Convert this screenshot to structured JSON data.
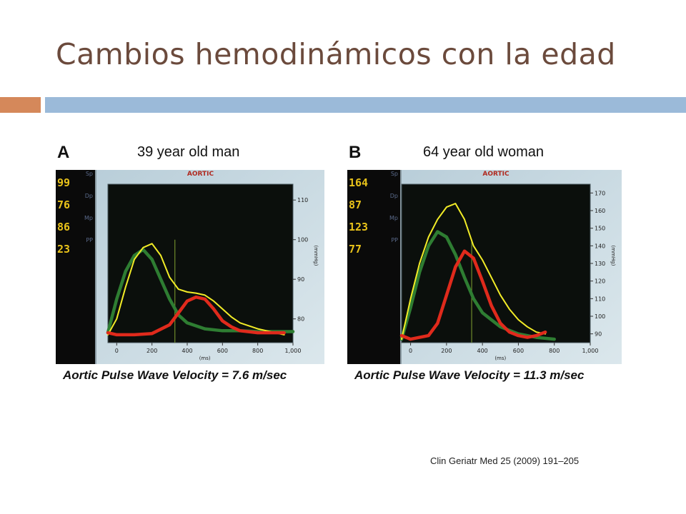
{
  "slide": {
    "title": "Cambios hemodinámicos con la edad",
    "citation": "Clin Geriatr Med 25 (2009) 191–205",
    "accent_colors": {
      "orange": "#d5885a",
      "blue": "#9bbad9",
      "title": "#6b4a3c"
    }
  },
  "chart_data": [
    {
      "type": "line",
      "panel_letter": "A",
      "title": "39 year old man",
      "subtitle": "AORTIC",
      "caption": "Aortic Pulse Wave Velocity = 7.6 m/sec",
      "xlabel": "(ms)",
      "ylabel": "(mmHg)",
      "xlim": [
        -50,
        1000
      ],
      "ylim": [
        74,
        114
      ],
      "x_ticks": [
        0,
        200,
        400,
        600,
        800,
        1000
      ],
      "x_tick_labels": [
        "0",
        "200",
        "400",
        "600",
        "800",
        "1,000"
      ],
      "y_ticks": [
        80,
        90,
        100,
        110
      ],
      "grid": false,
      "readout": [
        {
          "label": "Sp",
          "value": "99"
        },
        {
          "label": "Dp",
          "value": "76"
        },
        {
          "label": "Mp",
          "value": "86"
        },
        {
          "label": "PP",
          "value": "23"
        }
      ],
      "marker_line_x": 330,
      "series": [
        {
          "color": "#2e7d32",
          "width": 4.5,
          "x": [
            -50,
            0,
            50,
            100,
            150,
            200,
            250,
            300,
            350,
            400,
            500,
            600,
            700,
            800,
            1000
          ],
          "y": [
            76.5,
            85,
            92,
            96,
            97.5,
            95,
            90,
            85,
            81,
            79,
            77.5,
            77,
            77,
            76.8,
            76.8
          ]
        },
        {
          "color": "#f2ec27",
          "width": 2,
          "x": [
            -50,
            0,
            50,
            100,
            150,
            200,
            250,
            300,
            350,
            400,
            450,
            500,
            550,
            600,
            650,
            700,
            800,
            900,
            950
          ],
          "y": [
            76,
            80,
            88,
            95,
            98,
            99,
            96,
            90.5,
            87.5,
            86.8,
            86.5,
            86,
            84.5,
            82.5,
            80.5,
            79,
            77.5,
            76.5,
            76
          ]
        },
        {
          "color": "#e02a1c",
          "width": 4.5,
          "x": [
            -50,
            0,
            100,
            200,
            300,
            350,
            400,
            450,
            500,
            550,
            600,
            650,
            700,
            800,
            900,
            950
          ],
          "y": [
            76.5,
            76,
            76,
            76.3,
            78.5,
            81.5,
            84.5,
            85.5,
            85,
            82.5,
            79.5,
            78,
            77,
            76.5,
            76.5,
            76.5
          ]
        }
      ]
    },
    {
      "type": "line",
      "panel_letter": "B",
      "title": "64 year old woman",
      "subtitle": "AORTIC",
      "caption": "Aortic Pulse Wave Velocity = 11.3 m/sec",
      "xlabel": "(ms)",
      "ylabel": "(mmHg)",
      "xlim": [
        -50,
        1000
      ],
      "ylim": [
        85,
        175
      ],
      "x_ticks": [
        0,
        200,
        400,
        600,
        800,
        1000
      ],
      "x_tick_labels": [
        "0",
        "200",
        "400",
        "600",
        "800",
        "1,000"
      ],
      "y_ticks": [
        90,
        100,
        110,
        120,
        130,
        140,
        150,
        160,
        170
      ],
      "grid": false,
      "readout": [
        {
          "label": "Sp",
          "value": "164"
        },
        {
          "label": "Dp",
          "value": "87"
        },
        {
          "label": "Mp",
          "value": "123"
        },
        {
          "label": "PP",
          "value": "77"
        }
      ],
      "marker_line_x": 340,
      "series": [
        {
          "color": "#2e7d32",
          "width": 4.5,
          "x": [
            -50,
            0,
            50,
            100,
            150,
            200,
            250,
            300,
            350,
            400,
            500,
            600,
            700,
            800
          ],
          "y": [
            87,
            105,
            125,
            140,
            148,
            145,
            135,
            122,
            110,
            102,
            94,
            90,
            88,
            87
          ]
        },
        {
          "color": "#f2ec27",
          "width": 2,
          "x": [
            -50,
            0,
            50,
            100,
            150,
            200,
            250,
            300,
            350,
            400,
            450,
            500,
            550,
            600,
            650,
            700,
            750
          ],
          "y": [
            87,
            110,
            130,
            145,
            155,
            162,
            164,
            155,
            140,
            132,
            122,
            112,
            104,
            98,
            94,
            91,
            90
          ]
        },
        {
          "color": "#e02a1c",
          "width": 4.5,
          "x": [
            -50,
            0,
            100,
            150,
            200,
            250,
            300,
            350,
            400,
            450,
            500,
            550,
            600,
            650,
            700,
            750
          ],
          "y": [
            89,
            87,
            89,
            96,
            112,
            128,
            137,
            133,
            120,
            106,
            96,
            91,
            89,
            88,
            89,
            91
          ]
        }
      ]
    }
  ]
}
